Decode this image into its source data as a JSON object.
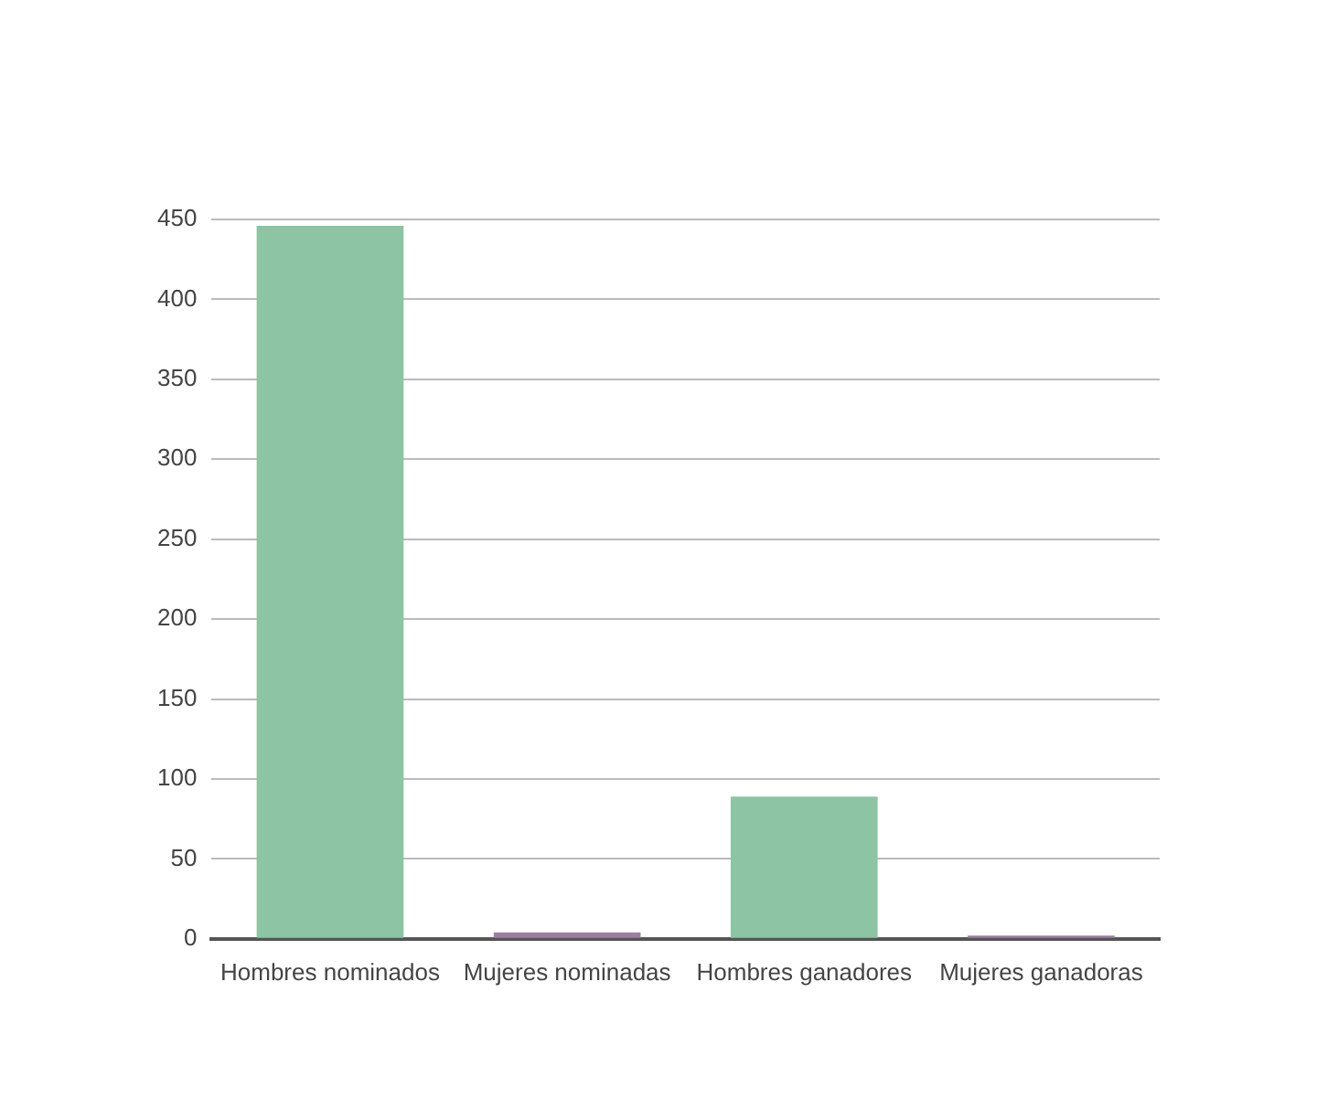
{
  "chart_data": {
    "type": "bar",
    "categories": [
      "Hombres nominados",
      "Mujeres nominadas",
      "Hombres ganadores",
      "Mujeres ganadoras"
    ],
    "values": [
      446,
      4,
      89,
      2
    ],
    "colors": [
      "#8cc4a4",
      "#9b7fa3",
      "#8cc4a4",
      "#9b7fa3"
    ],
    "ylim": [
      0,
      450
    ],
    "yticks": [
      0,
      50,
      100,
      150,
      200,
      250,
      300,
      350,
      400,
      450
    ],
    "grid": "y",
    "legend": false
  }
}
